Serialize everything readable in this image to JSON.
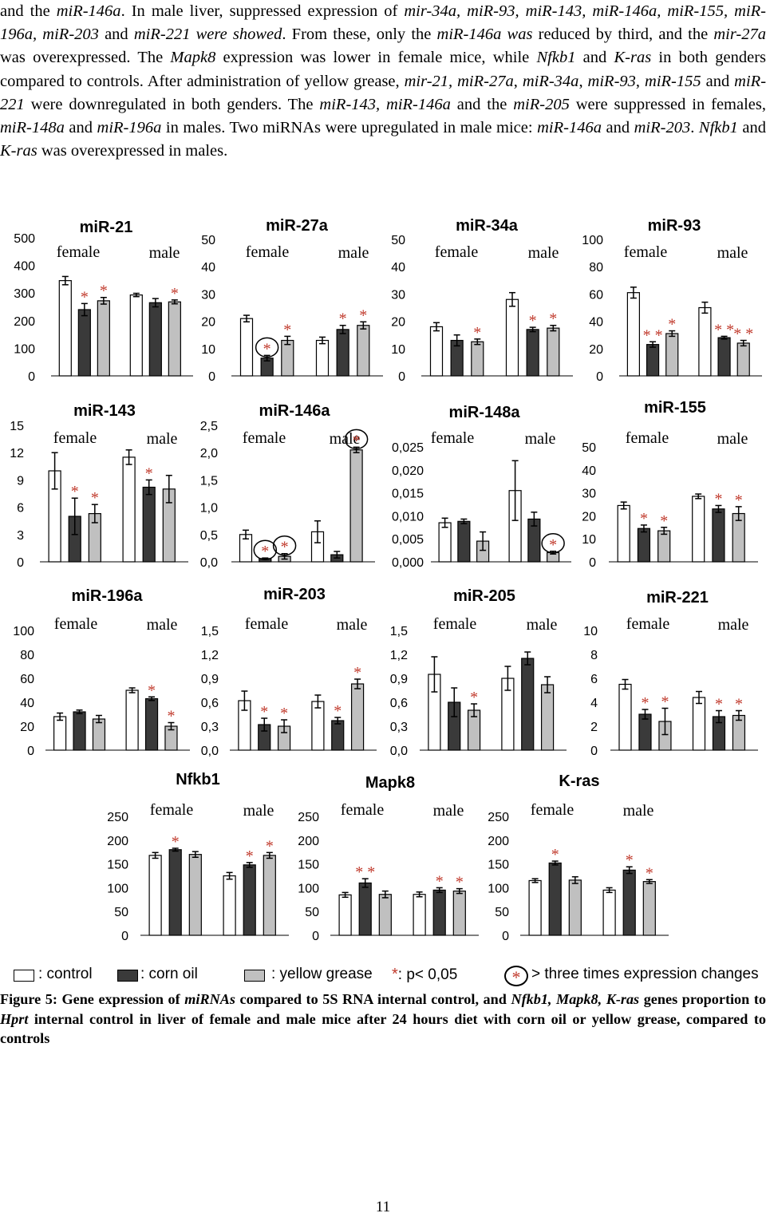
{
  "intro": [
    {
      "t": "and the ",
      "i": false
    },
    {
      "t": "miR-146a",
      "i": true
    },
    {
      "t": ". In male liver, suppressed expression of ",
      "i": false
    },
    {
      "t": "mir-34a, miR-93, miR-143, miR-146a, miR-155, miR-196a, miR-203",
      "i": true
    },
    {
      "t": " and ",
      "i": false
    },
    {
      "t": "miR-221 were showed",
      "i": true
    },
    {
      "t": ". From these, only the ",
      "i": false
    },
    {
      "t": "miR-146a was",
      "i": true
    },
    {
      "t": " reduced by third, and the ",
      "i": false
    },
    {
      "t": "mir-27a",
      "i": true
    },
    {
      "t": " was overexpressed. The ",
      "i": false
    },
    {
      "t": "Mapk8",
      "i": true
    },
    {
      "t": " expression was lower in female mice, while ",
      "i": false
    },
    {
      "t": "Nfkb1",
      "i": true
    },
    {
      "t": " and ",
      "i": false
    },
    {
      "t": "K-ras",
      "i": true
    },
    {
      "t": " in both genders compared to controls. After administration of yellow grease, ",
      "i": false
    },
    {
      "t": "mir-21, miR-27a",
      "i": true
    },
    {
      "t": ", ",
      "i": false
    },
    {
      "t": "miR-34a",
      "i": true
    },
    {
      "t": ", ",
      "i": false
    },
    {
      "t": "miR-93",
      "i": true
    },
    {
      "t": ", ",
      "i": false
    },
    {
      "t": "miR-155",
      "i": true
    },
    {
      "t": " and ",
      "i": false
    },
    {
      "t": "miR-221",
      "i": true
    },
    {
      "t": " were downregulated in both genders. The ",
      "i": false
    },
    {
      "t": "miR-143, miR-146a",
      "i": true
    },
    {
      "t": " and the ",
      "i": false
    },
    {
      "t": "miR-205",
      "i": true
    },
    {
      "t": " were suppressed in females, ",
      "i": false
    },
    {
      "t": "miR-148a",
      "i": true
    },
    {
      "t": " and ",
      "i": false
    },
    {
      "t": "miR-196a",
      "i": true
    },
    {
      "t": " in males. Two miRNAs were upregulated in male mice: ",
      "i": false
    },
    {
      "t": "miR-146a",
      "i": true
    },
    {
      "t": " and ",
      "i": false
    },
    {
      "t": "miR-203",
      "i": true
    },
    {
      "t": ". ",
      "i": false
    },
    {
      "t": "Nfkb1",
      "i": true
    },
    {
      "t": " and ",
      "i": false
    },
    {
      "t": "K-ras",
      "i": true
    },
    {
      "t": " was overexpressed in males.",
      "i": false
    }
  ],
  "chart_data": [
    {
      "type": "bar",
      "title": "miR-21",
      "ticks": [
        "500",
        "400",
        "300",
        "200",
        "100",
        "0"
      ],
      "ylim": [
        0,
        500
      ],
      "group_labels": [
        "female",
        "male"
      ],
      "values": [
        345,
        240,
        272,
        293,
        265,
        268
      ],
      "errors": [
        15,
        22,
        12,
        6,
        15,
        7
      ],
      "stars": [
        "",
        "*",
        "*",
        "",
        "",
        "*"
      ],
      "circled": []
    },
    {
      "type": "bar",
      "title": "miR-27a",
      "ticks": [
        "50",
        "40",
        "30",
        "20",
        "10",
        "0"
      ],
      "ylim": [
        0,
        50
      ],
      "group_labels": [
        "female",
        "male"
      ],
      "values": [
        21,
        6.5,
        13,
        13,
        17,
        18.5
      ],
      "errors": [
        1.2,
        1,
        1.5,
        1.2,
        1.5,
        1.3
      ],
      "stars": [
        "",
        "*",
        "*",
        "",
        "*",
        "*"
      ],
      "circled": [
        1
      ]
    },
    {
      "type": "bar",
      "title": "miR-34a",
      "ticks": [
        "50",
        "40",
        "30",
        "20",
        "10",
        "0"
      ],
      "ylim": [
        0,
        50
      ],
      "group_labels": [
        "female",
        "male"
      ],
      "values": [
        18,
        13,
        12.5,
        28,
        17,
        17.5
      ],
      "errors": [
        1.5,
        2,
        1,
        2.5,
        0.8,
        1
      ],
      "stars": [
        "",
        "",
        "*",
        "",
        "*",
        "*"
      ],
      "circled": []
    },
    {
      "type": "bar",
      "title": "miR-93",
      "ticks": [
        "100",
        "80",
        "60",
        "40",
        "20",
        "0"
      ],
      "ylim": [
        0,
        100
      ],
      "group_labels": [
        "female",
        "male"
      ],
      "values": [
        61,
        23,
        31,
        50,
        28,
        24
      ],
      "errors": [
        4,
        2,
        2,
        4,
        1,
        2
      ],
      "stars": [
        "",
        "* *",
        "*",
        "",
        "* *",
        "* *"
      ],
      "circled": []
    },
    {
      "type": "bar",
      "title": "miR-143",
      "ticks": [
        "15",
        "12",
        "9",
        "6",
        "3",
        "0"
      ],
      "ylim": [
        0,
        15
      ],
      "group_labels": [
        "female",
        "male"
      ],
      "values": [
        10,
        5,
        5.3,
        11.5,
        8.2,
        8
      ],
      "errors": [
        2,
        2,
        1,
        0.8,
        0.8,
        1.5
      ],
      "stars": [
        "",
        "*",
        "*",
        "",
        "*",
        ""
      ],
      "circled": []
    },
    {
      "type": "bar",
      "title": "miR-146a",
      "ticks": [
        "2,5",
        "2,0",
        "1,5",
        "1,0",
        "0,5",
        "0,0"
      ],
      "ylim": [
        0,
        2.5
      ],
      "group_labels": [
        "female",
        "male"
      ],
      "values": [
        0.5,
        0.06,
        0.1,
        0.55,
        0.13,
        2.05
      ],
      "errors": [
        0.08,
        0.01,
        0.05,
        0.2,
        0.06,
        0.05
      ],
      "stars": [
        "",
        "*",
        "*",
        "",
        "",
        "*"
      ],
      "circled": [
        1,
        2,
        5
      ]
    },
    {
      "type": "bar",
      "title": "miR-148a",
      "ticks": [
        "0,025",
        "0,020",
        "0,015",
        "0,010",
        "0,005",
        "0,000"
      ],
      "ylim": [
        0,
        0.025
      ],
      "group_labels": [
        "female",
        "male"
      ],
      "values": [
        0.0085,
        0.0088,
        0.0045,
        0.0155,
        0.0093,
        0.002
      ],
      "errors": [
        0.001,
        0.0005,
        0.002,
        0.0065,
        0.0015,
        0.0003
      ],
      "stars": [
        "",
        "",
        "",
        "",
        "",
        "*"
      ],
      "circled": [
        5
      ]
    },
    {
      "type": "bar",
      "title": "miR-155",
      "ticks": [
        "50",
        "40",
        "30",
        "20",
        "10",
        "0"
      ],
      "ylim": [
        0,
        50
      ],
      "group_labels": [
        "female",
        "male"
      ],
      "values": [
        24.5,
        14.5,
        13.5,
        28.5,
        23,
        21
      ],
      "errors": [
        1.5,
        1.5,
        1.5,
        1,
        1.5,
        3
      ],
      "stars": [
        "",
        "*",
        "*",
        "",
        "*",
        "*"
      ],
      "circled": []
    },
    {
      "type": "bar",
      "title": "miR-196a",
      "ticks": [
        "100",
        "80",
        "60",
        "40",
        "20",
        "0"
      ],
      "ylim": [
        0,
        100
      ],
      "group_labels": [
        "female",
        "male"
      ],
      "values": [
        28,
        32,
        26,
        50,
        43,
        20
      ],
      "errors": [
        3,
        1.5,
        3,
        2,
        1.5,
        3
      ],
      "stars": [
        "",
        "",
        "",
        "",
        "*",
        "*"
      ],
      "circled": []
    },
    {
      "type": "bar",
      "title": "miR-203",
      "ticks": [
        "1,5",
        "1,2",
        "0,9",
        "0,6",
        "0,3",
        "0,0"
      ],
      "ylim": [
        0,
        1.5
      ],
      "group_labels": [
        "female",
        "male"
      ],
      "values": [
        0.62,
        0.32,
        0.3,
        0.61,
        0.37,
        0.83
      ],
      "errors": [
        0.12,
        0.08,
        0.08,
        0.08,
        0.04,
        0.06
      ],
      "stars": [
        "",
        "*",
        "*",
        "",
        "*",
        "*"
      ],
      "circled": []
    },
    {
      "type": "bar",
      "title": "miR-205",
      "ticks": [
        "1,5",
        "1,2",
        "0,9",
        "0,6",
        "0,3",
        "0,0"
      ],
      "ylim": [
        0,
        1.5
      ],
      "group_labels": [
        "female",
        "male"
      ],
      "values": [
        0.95,
        0.6,
        0.5,
        0.9,
        1.15,
        0.82
      ],
      "errors": [
        0.22,
        0.18,
        0.08,
        0.15,
        0.08,
        0.1
      ],
      "stars": [
        "",
        "",
        "*",
        "",
        "",
        ""
      ],
      "circled": []
    },
    {
      "type": "bar",
      "title": "miR-221",
      "ticks": [
        "10",
        "8",
        "6",
        "4",
        "2",
        "0"
      ],
      "ylim": [
        0,
        10
      ],
      "group_labels": [
        "female",
        "male"
      ],
      "values": [
        5.5,
        3,
        2.4,
        4.4,
        2.8,
        2.9
      ],
      "errors": [
        0.4,
        0.4,
        1.1,
        0.5,
        0.5,
        0.4
      ],
      "stars": [
        "",
        "*",
        "*",
        "",
        "*",
        "*"
      ],
      "circled": []
    },
    {
      "type": "bar",
      "title": "Nfkb1",
      "ticks": [
        "250",
        "200",
        "150",
        "100",
        "50",
        "0"
      ],
      "ylim": [
        0,
        250
      ],
      "group_labels": [
        "female",
        "male"
      ],
      "values": [
        168,
        180,
        170,
        125,
        148,
        168
      ],
      "errors": [
        6,
        3,
        6,
        7,
        5,
        6
      ],
      "stars": [
        "",
        "*",
        "",
        "",
        "*",
        "*"
      ],
      "circled": []
    },
    {
      "type": "bar",
      "title": "Mapk8",
      "ticks": [
        "250",
        "200",
        "150",
        "100",
        "50",
        "0"
      ],
      "ylim": [
        0,
        250
      ],
      "group_labels": [
        "female",
        "male"
      ],
      "values": [
        85,
        110,
        86,
        86,
        95,
        93
      ],
      "errors": [
        5,
        9,
        7,
        5,
        5,
        5
      ],
      "stars": [
        "",
        "* *",
        "",
        "",
        "*",
        "*"
      ],
      "circled": []
    },
    {
      "type": "bar",
      "title": "K-ras",
      "ticks": [
        "250",
        "200",
        "150",
        "100",
        "50",
        "0"
      ],
      "ylim": [
        0,
        250
      ],
      "group_labels": [
        "female",
        "male"
      ],
      "values": [
        115,
        152,
        116,
        95,
        137,
        113
      ],
      "errors": [
        4,
        4,
        7,
        5,
        7,
        4
      ],
      "stars": [
        "",
        "*",
        "",
        "",
        "*",
        "*"
      ],
      "circled": []
    }
  ],
  "legend": {
    "control": ": control",
    "corn_oil": ": corn oil",
    "yellow_grease": ": yellow grease",
    "p_star": "*",
    "p_text": ": p< 0,05",
    "circle_star": "*",
    "circle_text": "> three times expression changes"
  },
  "colors": {
    "control": "#ffffff",
    "corn_oil": "#3a3a3a",
    "yellow_grease": "#c0c0c0",
    "star": "#c0392b"
  },
  "caption": [
    {
      "t": "Figure 5: Gene expression of ",
      "i": false
    },
    {
      "t": "miRNAs",
      "i": true
    },
    {
      "t": " compared to 5S RNA internal control, and ",
      "i": false
    },
    {
      "t": "Nfkb1, Mapk8, K-ras",
      "i": true
    },
    {
      "t": " genes proportion to ",
      "i": false
    },
    {
      "t": "Hprt",
      "i": true
    },
    {
      "t": " internal control in liver of female and male mice after 24 hours diet with corn oil or yellow grease, compared to controls",
      "i": false
    }
  ],
  "page_number": "11"
}
